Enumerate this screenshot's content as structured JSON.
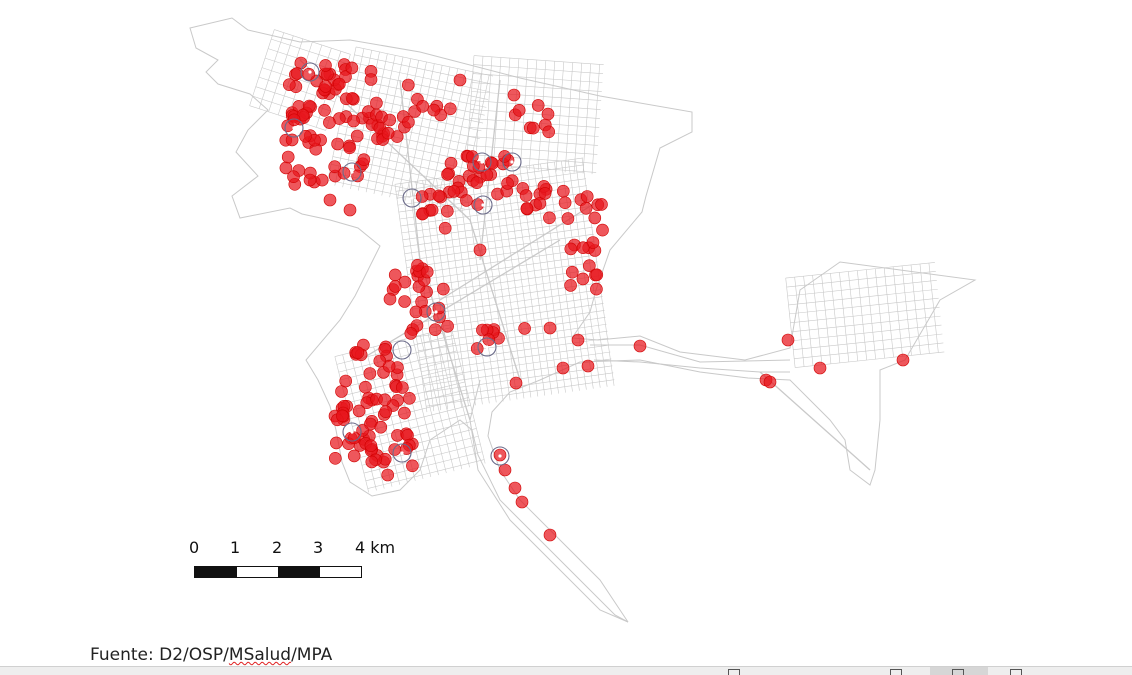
{
  "map": {
    "colors": {
      "street": "#c9c9c9",
      "case_fill": "#e8161d",
      "case_stroke": "#d00000",
      "cluster_ring": "#6b6b8a"
    },
    "legend": {
      "scale_labels": [
        "0",
        "1",
        "2",
        "3",
        "4 km"
      ]
    },
    "source_prefix": "Fuente: D2/OSP/",
    "source_word": "MSalud",
    "source_suffix": "/MPA"
  }
}
